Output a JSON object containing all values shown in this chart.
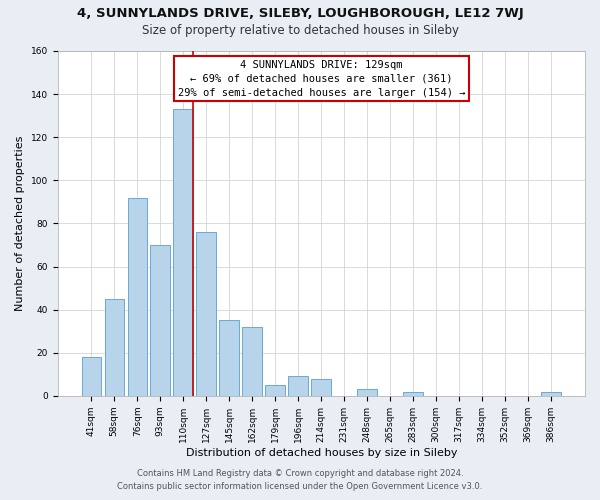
{
  "title": "4, SUNNYLANDS DRIVE, SILEBY, LOUGHBOROUGH, LE12 7WJ",
  "subtitle": "Size of property relative to detached houses in Sileby",
  "xlabel": "Distribution of detached houses by size in Sileby",
  "ylabel": "Number of detached properties",
  "bar_labels": [
    "41sqm",
    "58sqm",
    "76sqm",
    "93sqm",
    "110sqm",
    "127sqm",
    "145sqm",
    "162sqm",
    "179sqm",
    "196sqm",
    "214sqm",
    "231sqm",
    "248sqm",
    "265sqm",
    "283sqm",
    "300sqm",
    "317sqm",
    "334sqm",
    "352sqm",
    "369sqm",
    "386sqm"
  ],
  "bar_heights": [
    18,
    45,
    92,
    70,
    133,
    76,
    35,
    32,
    5,
    9,
    8,
    0,
    3,
    0,
    2,
    0,
    0,
    0,
    0,
    0,
    2
  ],
  "bar_color": "#b8d4ea",
  "bar_edge_color": "#6aaad4",
  "marker_bar_index": 4,
  "marker_label_line1": "4 SUNNYLANDS DRIVE: 129sqm",
  "marker_label_line2": "← 69% of detached houses are smaller (361)",
  "marker_label_line3": "29% of semi-detached houses are larger (154) →",
  "marker_color": "#cc0000",
  "ylim": [
    0,
    160
  ],
  "yticks": [
    0,
    20,
    40,
    60,
    80,
    100,
    120,
    140,
    160
  ],
  "footer_line1": "Contains HM Land Registry data © Crown copyright and database right 2024.",
  "footer_line2": "Contains public sector information licensed under the Open Government Licence v3.0.",
  "bg_color": "#e8eef4",
  "plot_bg_color": "#ffffff",
  "title_fontsize": 9.5,
  "subtitle_fontsize": 8.5,
  "axis_label_fontsize": 8,
  "tick_fontsize": 6.5,
  "footer_fontsize": 6,
  "annot_fontsize": 7.5
}
